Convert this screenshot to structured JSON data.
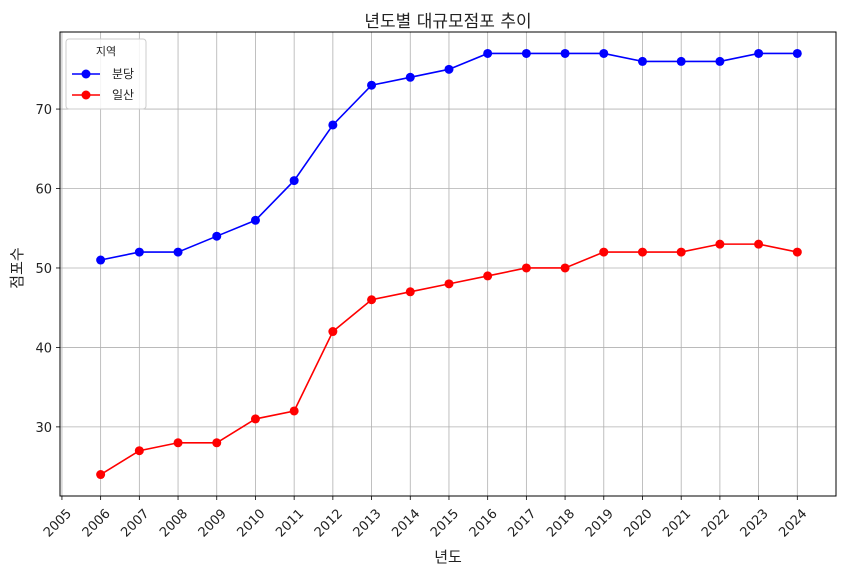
{
  "chart_data": {
    "type": "line",
    "title": "년도별 대규모점포 추이",
    "xlabel": "년도",
    "ylabel": "점포수",
    "x": [
      2006,
      2007,
      2008,
      2009,
      2010,
      2011,
      2012,
      2013,
      2014,
      2015,
      2016,
      2017,
      2018,
      2019,
      2020,
      2021,
      2022,
      2023,
      2024
    ],
    "xticks": [
      2005,
      2006,
      2007,
      2008,
      2009,
      2010,
      2011,
      2012,
      2013,
      2014,
      2015,
      2016,
      2017,
      2018,
      2019,
      2020,
      2021,
      2022,
      2023,
      2024
    ],
    "xlim": [
      2004.95,
      2025.0
    ],
    "yticks": [
      30,
      40,
      50,
      60,
      70
    ],
    "ylim": [
      21.3,
      79.7
    ],
    "grid": true,
    "legend": {
      "title": "지역",
      "placement": "top-left"
    },
    "series": [
      {
        "name": "분당",
        "color": "#0000ff",
        "values": [
          51,
          52,
          52,
          54,
          56,
          61,
          68,
          73,
          74,
          75,
          77,
          77,
          77,
          77,
          76,
          76,
          76,
          77,
          77
        ]
      },
      {
        "name": "일산",
        "color": "#ff0000",
        "values": [
          24,
          27,
          28,
          28,
          31,
          32,
          42,
          46,
          47,
          48,
          49,
          50,
          50,
          52,
          52,
          52,
          53,
          53,
          52
        ]
      }
    ]
  }
}
